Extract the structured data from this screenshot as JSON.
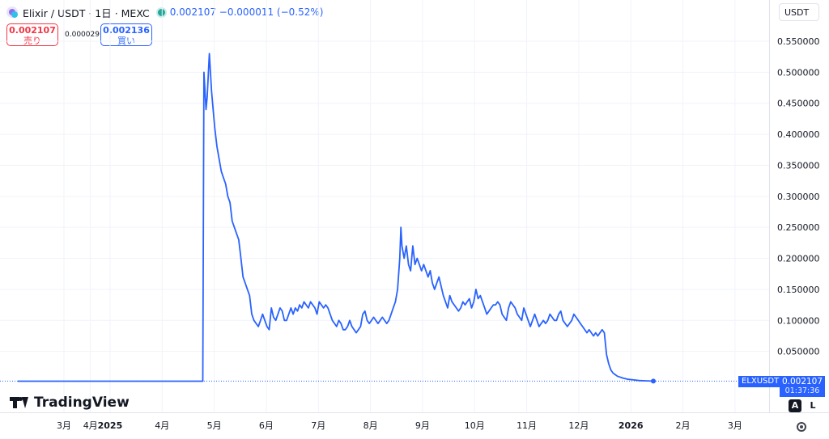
{
  "header": {
    "title": "Elixir / USDT · 1日 · MEXC",
    "price_text": "0.002107  −0.000011 (−0.52%)"
  },
  "quotes": {
    "sell_value": "0.002107",
    "sell_label": "売り",
    "spread": "0.000029",
    "buy_value": "0.002136",
    "buy_label": "買い"
  },
  "currency": "USDT",
  "last": {
    "symbol": "ELXUSDT",
    "price": "0.002107",
    "countdown": "01:37:36"
  },
  "branding": "TradingView",
  "controls": {
    "auto": "A",
    "log": "L"
  },
  "colors": {
    "line": "#2962ff",
    "sell": "#f23645",
    "buy": "#2962ff"
  },
  "chart_data": {
    "type": "line",
    "y_ticks": [
      "0.550000",
      "0.500000",
      "0.450000",
      "0.400000",
      "0.350000",
      "0.300000",
      "0.250000",
      "0.200000",
      "0.150000",
      "0.100000",
      "0.050000"
    ],
    "y_tick_values": [
      0.55,
      0.5,
      0.45,
      0.4,
      0.35,
      0.3,
      0.25,
      0.2,
      0.15,
      0.1,
      0.05
    ],
    "ylim": [
      0.0,
      0.55
    ],
    "x_ticks": [
      "3月",
      "4月",
      "2025",
      "4月",
      "5月",
      "6月",
      "7月",
      "8月",
      "9月",
      "10月",
      "11月",
      "12月",
      "2026",
      "2月",
      "3月"
    ],
    "x_tick_days": [
      0,
      31,
      54,
      115,
      176,
      237,
      298,
      359,
      420,
      481,
      542,
      603,
      664,
      725,
      786
    ],
    "last_value": 0.002107,
    "series": [
      {
        "values": [
          [
            0,
            0.002
          ],
          [
            170,
            0.002
          ],
          [
            171,
            0.5
          ],
          [
            173,
            0.44
          ],
          [
            174,
            0.46
          ],
          [
            176,
            0.53
          ],
          [
            178,
            0.47
          ],
          [
            179,
            0.45
          ],
          [
            181,
            0.41
          ],
          [
            183,
            0.38
          ],
          [
            185,
            0.36
          ],
          [
            187,
            0.34
          ],
          [
            189,
            0.33
          ],
          [
            191,
            0.32
          ],
          [
            193,
            0.3
          ],
          [
            195,
            0.29
          ],
          [
            197,
            0.26
          ],
          [
            199,
            0.25
          ],
          [
            201,
            0.24
          ],
          [
            203,
            0.23
          ],
          [
            205,
            0.2
          ],
          [
            207,
            0.17
          ],
          [
            209,
            0.16
          ],
          [
            211,
            0.15
          ],
          [
            213,
            0.14
          ],
          [
            215,
            0.11
          ],
          [
            217,
            0.1
          ],
          [
            219,
            0.095
          ],
          [
            221,
            0.09
          ],
          [
            223,
            0.1
          ],
          [
            225,
            0.11
          ],
          [
            227,
            0.1
          ],
          [
            229,
            0.09
          ],
          [
            231,
            0.085
          ],
          [
            233,
            0.12
          ],
          [
            235,
            0.105
          ],
          [
            237,
            0.1
          ],
          [
            239,
            0.11
          ],
          [
            241,
            0.12
          ],
          [
            243,
            0.115
          ],
          [
            245,
            0.1
          ],
          [
            247,
            0.1
          ],
          [
            249,
            0.11
          ],
          [
            251,
            0.12
          ],
          [
            253,
            0.11
          ],
          [
            255,
            0.12
          ],
          [
            257,
            0.115
          ],
          [
            259,
            0.125
          ],
          [
            261,
            0.12
          ],
          [
            263,
            0.13
          ],
          [
            265,
            0.125
          ],
          [
            267,
            0.12
          ],
          [
            269,
            0.13
          ],
          [
            271,
            0.125
          ],
          [
            273,
            0.12
          ],
          [
            275,
            0.11
          ],
          [
            277,
            0.13
          ],
          [
            279,
            0.125
          ],
          [
            281,
            0.12
          ],
          [
            283,
            0.125
          ],
          [
            285,
            0.12
          ],
          [
            287,
            0.11
          ],
          [
            289,
            0.1
          ],
          [
            291,
            0.095
          ],
          [
            293,
            0.09
          ],
          [
            295,
            0.1
          ],
          [
            297,
            0.095
          ],
          [
            299,
            0.085
          ],
          [
            301,
            0.085
          ],
          [
            303,
            0.09
          ],
          [
            305,
            0.1
          ],
          [
            307,
            0.09
          ],
          [
            309,
            0.085
          ],
          [
            311,
            0.08
          ],
          [
            313,
            0.085
          ],
          [
            315,
            0.09
          ],
          [
            317,
            0.11
          ],
          [
            319,
            0.115
          ],
          [
            321,
            0.1
          ],
          [
            323,
            0.095
          ],
          [
            325,
            0.1
          ],
          [
            327,
            0.105
          ],
          [
            329,
            0.1
          ],
          [
            331,
            0.095
          ],
          [
            333,
            0.1
          ],
          [
            335,
            0.105
          ],
          [
            337,
            0.1
          ],
          [
            339,
            0.095
          ],
          [
            341,
            0.1
          ],
          [
            343,
            0.11
          ],
          [
            345,
            0.12
          ],
          [
            347,
            0.13
          ],
          [
            349,
            0.15
          ],
          [
            351,
            0.2
          ],
          [
            352,
            0.25
          ],
          [
            353,
            0.22
          ],
          [
            355,
            0.2
          ],
          [
            357,
            0.22
          ],
          [
            359,
            0.19
          ],
          [
            361,
            0.18
          ],
          [
            363,
            0.22
          ],
          [
            365,
            0.19
          ],
          [
            367,
            0.2
          ],
          [
            369,
            0.19
          ],
          [
            371,
            0.18
          ],
          [
            373,
            0.19
          ],
          [
            375,
            0.18
          ],
          [
            377,
            0.17
          ],
          [
            379,
            0.18
          ],
          [
            381,
            0.16
          ],
          [
            383,
            0.15
          ],
          [
            385,
            0.16
          ],
          [
            387,
            0.17
          ],
          [
            389,
            0.155
          ],
          [
            391,
            0.14
          ],
          [
            393,
            0.13
          ],
          [
            395,
            0.12
          ],
          [
            397,
            0.14
          ],
          [
            399,
            0.13
          ],
          [
            401,
            0.125
          ],
          [
            403,
            0.12
          ],
          [
            405,
            0.115
          ],
          [
            407,
            0.12
          ],
          [
            409,
            0.13
          ],
          [
            411,
            0.125
          ],
          [
            413,
            0.13
          ],
          [
            415,
            0.135
          ],
          [
            417,
            0.12
          ],
          [
            419,
            0.13
          ],
          [
            421,
            0.15
          ],
          [
            423,
            0.135
          ],
          [
            425,
            0.14
          ],
          [
            427,
            0.13
          ],
          [
            429,
            0.12
          ],
          [
            431,
            0.11
          ],
          [
            433,
            0.115
          ],
          [
            435,
            0.12
          ],
          [
            437,
            0.125
          ],
          [
            439,
            0.125
          ],
          [
            441,
            0.13
          ],
          [
            443,
            0.125
          ],
          [
            445,
            0.11
          ],
          [
            447,
            0.105
          ],
          [
            449,
            0.1
          ],
          [
            451,
            0.12
          ],
          [
            453,
            0.13
          ],
          [
            455,
            0.125
          ],
          [
            457,
            0.12
          ],
          [
            459,
            0.11
          ],
          [
            461,
            0.105
          ],
          [
            463,
            0.1
          ],
          [
            465,
            0.12
          ],
          [
            467,
            0.11
          ],
          [
            469,
            0.1
          ],
          [
            471,
            0.09
          ],
          [
            473,
            0.1
          ],
          [
            475,
            0.11
          ],
          [
            477,
            0.1
          ],
          [
            479,
            0.09
          ],
          [
            481,
            0.095
          ],
          [
            483,
            0.1
          ],
          [
            485,
            0.095
          ],
          [
            487,
            0.1
          ],
          [
            489,
            0.11
          ],
          [
            491,
            0.105
          ],
          [
            493,
            0.1
          ],
          [
            495,
            0.1
          ],
          [
            497,
            0.11
          ],
          [
            499,
            0.115
          ],
          [
            501,
            0.1
          ],
          [
            503,
            0.095
          ],
          [
            505,
            0.09
          ],
          [
            507,
            0.095
          ],
          [
            509,
            0.1
          ],
          [
            511,
            0.11
          ],
          [
            513,
            0.105
          ],
          [
            515,
            0.1
          ],
          [
            517,
            0.095
          ],
          [
            519,
            0.09
          ],
          [
            521,
            0.085
          ],
          [
            523,
            0.08
          ],
          [
            525,
            0.085
          ],
          [
            527,
            0.08
          ],
          [
            529,
            0.075
          ],
          [
            531,
            0.08
          ],
          [
            533,
            0.075
          ],
          [
            535,
            0.08
          ],
          [
            537,
            0.085
          ],
          [
            539,
            0.08
          ],
          [
            541,
            0.045
          ],
          [
            543,
            0.03
          ],
          [
            545,
            0.02
          ],
          [
            547,
            0.015
          ],
          [
            551,
            0.01
          ],
          [
            556,
            0.007
          ],
          [
            561,
            0.005
          ],
          [
            566,
            0.004
          ],
          [
            571,
            0.003
          ],
          [
            578,
            0.0025
          ],
          [
            584,
            0.002107
          ]
        ]
      }
    ]
  }
}
